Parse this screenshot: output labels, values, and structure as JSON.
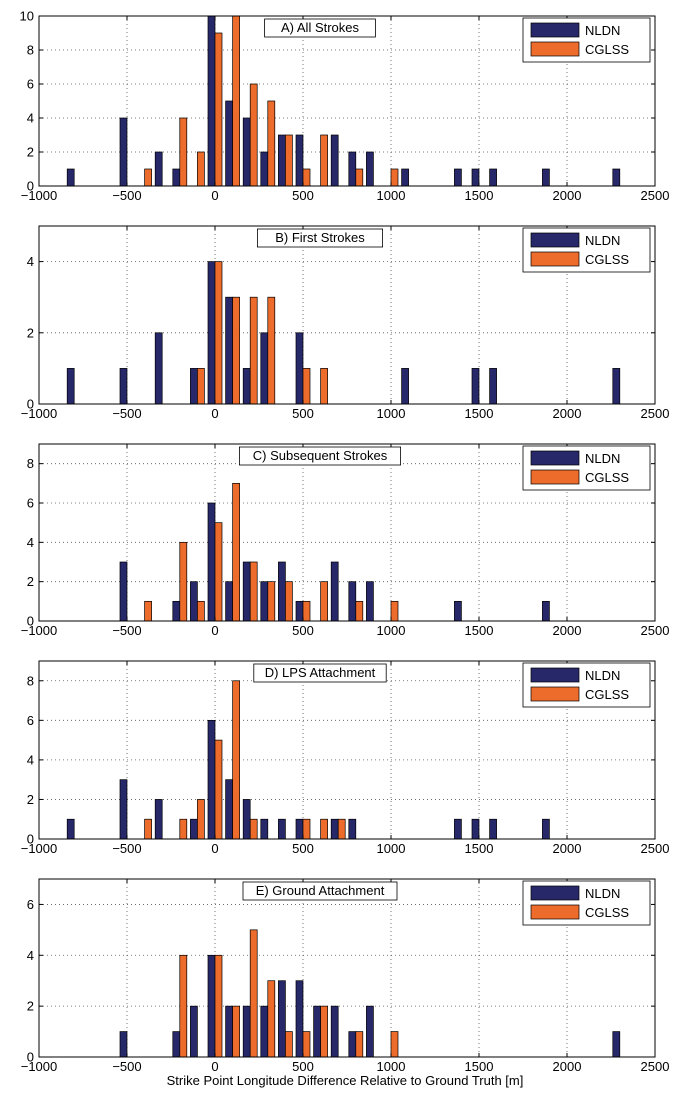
{
  "xlabel": "Strike Point Longitude Difference Relative to Ground Truth [m]",
  "colors": {
    "NLDN": "#27286a",
    "CGLSS": "#ee6c2b"
  },
  "chart_data": [
    {
      "type": "bar",
      "title": "A) All Strokes",
      "xlim": [
        -1000,
        2500
      ],
      "ylim": [
        0,
        10
      ],
      "xticks": [
        -1000,
        -500,
        0,
        500,
        1000,
        1500,
        2000,
        2500
      ],
      "yticks": [
        0,
        2,
        4,
        6,
        8,
        10
      ],
      "grid": true,
      "legend": "top-right",
      "series": [
        {
          "name": "NLDN",
          "x": [
            -800,
            -500,
            -300,
            -200,
            0,
            100,
            200,
            300,
            400,
            500,
            700,
            800,
            900,
            1100,
            1400,
            1500,
            1600,
            1900,
            2300
          ],
          "values": [
            1,
            4,
            2,
            1,
            10,
            5,
            4,
            2,
            3,
            3,
            3,
            2,
            2,
            1,
            1,
            1,
            1,
            1,
            1
          ]
        },
        {
          "name": "CGLSS",
          "x": [
            -400,
            -200,
            -100,
            0,
            100,
            200,
            300,
            400,
            500,
            600,
            800,
            1000
          ],
          "values": [
            1,
            4,
            2,
            9,
            10,
            6,
            5,
            3,
            1,
            3,
            1,
            1
          ]
        }
      ]
    },
    {
      "type": "bar",
      "title": "B) First Strokes",
      "xlim": [
        -1000,
        2500
      ],
      "ylim": [
        0,
        5
      ],
      "xticks": [
        -1000,
        -500,
        0,
        500,
        1000,
        1500,
        2000,
        2500
      ],
      "yticks": [
        0,
        2,
        4
      ],
      "grid": true,
      "legend": "top-right",
      "series": [
        {
          "name": "NLDN",
          "x": [
            -800,
            -500,
            -300,
            -100,
            0,
            100,
            200,
            300,
            500,
            1100,
            1500,
            1600,
            2300
          ],
          "values": [
            1,
            1,
            2,
            1,
            4,
            3,
            1,
            2,
            2,
            1,
            1,
            1,
            1
          ]
        },
        {
          "name": "CGLSS",
          "x": [
            -100,
            0,
            100,
            200,
            300,
            500,
            600
          ],
          "values": [
            1,
            4,
            3,
            3,
            3,
            1,
            1
          ]
        }
      ]
    },
    {
      "type": "bar",
      "title": "C) Subsequent Strokes",
      "xlim": [
        -1000,
        2500
      ],
      "ylim": [
        0,
        9
      ],
      "xticks": [
        -1000,
        -500,
        0,
        500,
        1000,
        1500,
        2000,
        2500
      ],
      "yticks": [
        0,
        2,
        4,
        6,
        8
      ],
      "grid": true,
      "legend": "top-right",
      "series": [
        {
          "name": "NLDN",
          "x": [
            -500,
            -200,
            -100,
            0,
            100,
            200,
            300,
            400,
            500,
            700,
            800,
            900,
            1400,
            1900
          ],
          "values": [
            3,
            1,
            2,
            6,
            2,
            3,
            2,
            3,
            1,
            3,
            2,
            2,
            1,
            1
          ]
        },
        {
          "name": "CGLSS",
          "x": [
            -400,
            -200,
            -100,
            0,
            100,
            200,
            300,
            400,
            500,
            600,
            800,
            1000
          ],
          "values": [
            1,
            4,
            1,
            5,
            7,
            3,
            2,
            2,
            1,
            2,
            1,
            1
          ]
        }
      ]
    },
    {
      "type": "bar",
      "title": "D) LPS Attachment",
      "xlim": [
        -1000,
        2500
      ],
      "ylim": [
        0,
        9
      ],
      "xticks": [
        -1000,
        -500,
        0,
        500,
        1000,
        1500,
        2000,
        2500
      ],
      "yticks": [
        0,
        2,
        4,
        6,
        8
      ],
      "grid": true,
      "legend": "top-right",
      "series": [
        {
          "name": "NLDN",
          "x": [
            -800,
            -500,
            -300,
            -100,
            0,
            100,
            200,
            300,
            400,
            500,
            700,
            800,
            1400,
            1500,
            1600,
            1900
          ],
          "values": [
            1,
            3,
            2,
            1,
            6,
            3,
            2,
            1,
            1,
            1,
            1,
            1,
            1,
            1,
            1,
            1
          ]
        },
        {
          "name": "CGLSS",
          "x": [
            -400,
            -200,
            -100,
            0,
            100,
            200,
            500,
            600,
            700
          ],
          "values": [
            1,
            1,
            2,
            5,
            8,
            1,
            1,
            1,
            1
          ]
        }
      ]
    },
    {
      "type": "bar",
      "title": "E) Ground Attachment",
      "xlim": [
        -1000,
        2500
      ],
      "ylim": [
        0,
        7
      ],
      "xticks": [
        -1000,
        -500,
        0,
        500,
        1000,
        1500,
        2000,
        2500
      ],
      "yticks": [
        0,
        2,
        4,
        6
      ],
      "grid": true,
      "legend": "top-right",
      "series": [
        {
          "name": "NLDN",
          "x": [
            -500,
            -200,
            -100,
            0,
            100,
            200,
            300,
            400,
            500,
            600,
            700,
            800,
            900,
            2300
          ],
          "values": [
            1,
            1,
            2,
            4,
            2,
            2,
            2,
            3,
            3,
            2,
            2,
            1,
            2,
            1
          ]
        },
        {
          "name": "CGLSS",
          "x": [
            -200,
            0,
            100,
            200,
            300,
            400,
            500,
            600,
            800,
            1000
          ],
          "values": [
            4,
            4,
            2,
            5,
            3,
            1,
            1,
            2,
            1,
            1
          ]
        }
      ]
    }
  ]
}
